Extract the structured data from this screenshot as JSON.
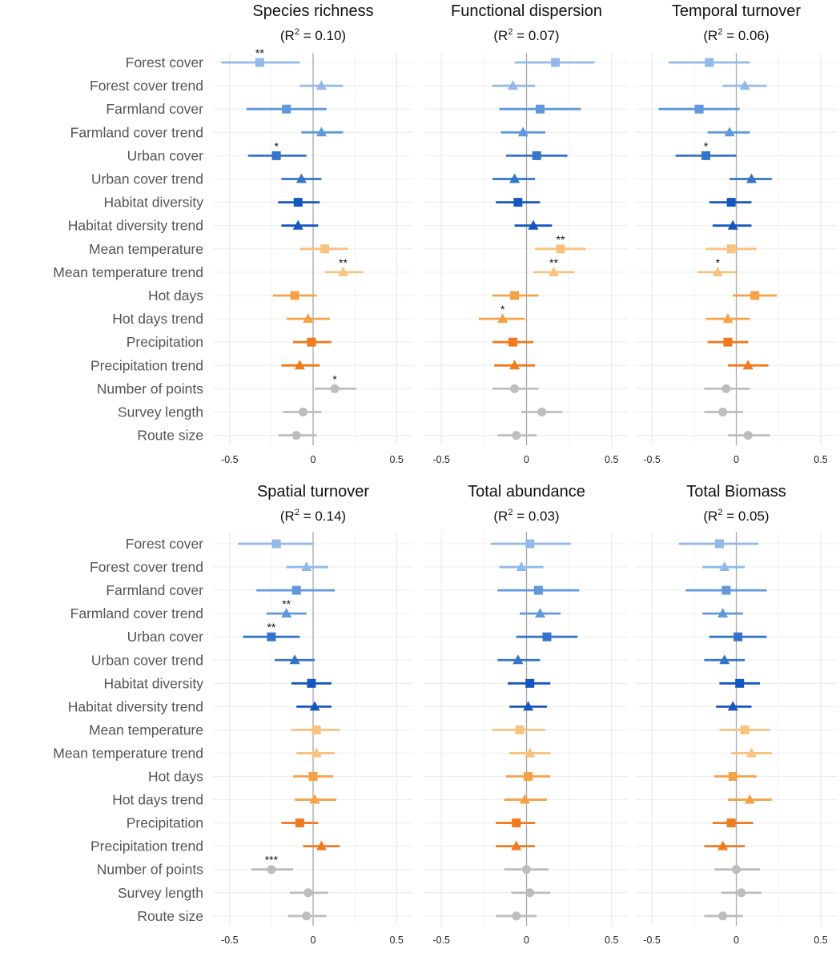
{
  "chart_data": {
    "type": "forest-plot",
    "variables": [
      {
        "label": "Forest cover",
        "color": "#93b9ea",
        "marker": "square"
      },
      {
        "label": "Forest cover trend",
        "color": "#93b9ea",
        "marker": "triangle"
      },
      {
        "label": "Farmland cover",
        "color": "#5f98db",
        "marker": "square"
      },
      {
        "label": "Farmland cover trend",
        "color": "#5f98db",
        "marker": "triangle"
      },
      {
        "label": "Urban cover",
        "color": "#3474c9",
        "marker": "square"
      },
      {
        "label": "Urban cover trend",
        "color": "#3474c9",
        "marker": "triangle"
      },
      {
        "label": "Habitat diversity",
        "color": "#1557be",
        "marker": "square"
      },
      {
        "label": "Habitat diversity trend",
        "color": "#1557be",
        "marker": "triangle"
      },
      {
        "label": "Mean temperature",
        "color": "#fac17e",
        "marker": "square"
      },
      {
        "label": "Mean temperature trend",
        "color": "#fac17e",
        "marker": "triangle"
      },
      {
        "label": "Hot days",
        "color": "#f7a147",
        "marker": "square"
      },
      {
        "label": "Hot days trend",
        "color": "#f7a147",
        "marker": "triangle"
      },
      {
        "label": "Precipitation",
        "color": "#f07a1e",
        "marker": "square"
      },
      {
        "label": "Precipitation trend",
        "color": "#f07a1e",
        "marker": "triangle"
      },
      {
        "label": "Number of points",
        "color": "#bdbdbd",
        "marker": "circle"
      },
      {
        "label": "Survey length",
        "color": "#bdbdbd",
        "marker": "circle"
      },
      {
        "label": "Route size",
        "color": "#bdbdbd",
        "marker": "circle"
      }
    ],
    "xlim": [
      -0.6,
      0.6
    ],
    "xticks": [
      -0.5,
      0,
      0.5
    ],
    "xtick_labels": [
      "-0.5",
      "0",
      "0.5"
    ],
    "panels": [
      {
        "title": "Species richness",
        "r2": "0.10",
        "estimates": [
          {
            "v": -0.32,
            "lo": -0.55,
            "hi": -0.08,
            "sig": "**"
          },
          {
            "v": 0.05,
            "lo": -0.08,
            "hi": 0.18,
            "sig": ""
          },
          {
            "v": -0.16,
            "lo": -0.4,
            "hi": 0.08,
            "sig": ""
          },
          {
            "v": 0.05,
            "lo": -0.07,
            "hi": 0.18,
            "sig": ""
          },
          {
            "v": -0.22,
            "lo": -0.39,
            "hi": -0.04,
            "sig": "*"
          },
          {
            "v": -0.07,
            "lo": -0.19,
            "hi": 0.05,
            "sig": ""
          },
          {
            "v": -0.09,
            "lo": -0.21,
            "hi": 0.04,
            "sig": ""
          },
          {
            "v": -0.09,
            "lo": -0.19,
            "hi": 0.03,
            "sig": ""
          },
          {
            "v": 0.07,
            "lo": -0.08,
            "hi": 0.21,
            "sig": ""
          },
          {
            "v": 0.18,
            "lo": 0.07,
            "hi": 0.3,
            "sig": "**"
          },
          {
            "v": -0.11,
            "lo": -0.24,
            "hi": 0.02,
            "sig": ""
          },
          {
            "v": -0.03,
            "lo": -0.16,
            "hi": 0.1,
            "sig": ""
          },
          {
            "v": -0.01,
            "lo": -0.12,
            "hi": 0.11,
            "sig": ""
          },
          {
            "v": -0.08,
            "lo": -0.19,
            "hi": 0.04,
            "sig": ""
          },
          {
            "v": 0.13,
            "lo": 0.01,
            "hi": 0.26,
            "sig": "*"
          },
          {
            "v": -0.06,
            "lo": -0.18,
            "hi": 0.05,
            "sig": ""
          },
          {
            "v": -0.1,
            "lo": -0.21,
            "hi": 0.02,
            "sig": ""
          }
        ]
      },
      {
        "title": "Functional dispersion",
        "r2": "0.07",
        "estimates": [
          {
            "v": 0.17,
            "lo": -0.07,
            "hi": 0.4,
            "sig": ""
          },
          {
            "v": -0.08,
            "lo": -0.2,
            "hi": 0.05,
            "sig": ""
          },
          {
            "v": 0.08,
            "lo": -0.16,
            "hi": 0.32,
            "sig": ""
          },
          {
            "v": -0.02,
            "lo": -0.15,
            "hi": 0.11,
            "sig": ""
          },
          {
            "v": 0.06,
            "lo": -0.12,
            "hi": 0.24,
            "sig": ""
          },
          {
            "v": -0.07,
            "lo": -0.2,
            "hi": 0.05,
            "sig": ""
          },
          {
            "v": -0.05,
            "lo": -0.18,
            "hi": 0.08,
            "sig": ""
          },
          {
            "v": 0.04,
            "lo": -0.07,
            "hi": 0.15,
            "sig": ""
          },
          {
            "v": 0.2,
            "lo": 0.05,
            "hi": 0.35,
            "sig": "**"
          },
          {
            "v": 0.16,
            "lo": 0.04,
            "hi": 0.28,
            "sig": "**"
          },
          {
            "v": -0.07,
            "lo": -0.2,
            "hi": 0.07,
            "sig": ""
          },
          {
            "v": -0.14,
            "lo": -0.28,
            "hi": -0.01,
            "sig": "*"
          },
          {
            "v": -0.08,
            "lo": -0.2,
            "hi": 0.04,
            "sig": ""
          },
          {
            "v": -0.07,
            "lo": -0.19,
            "hi": 0.05,
            "sig": ""
          },
          {
            "v": -0.07,
            "lo": -0.2,
            "hi": 0.07,
            "sig": ""
          },
          {
            "v": 0.09,
            "lo": -0.03,
            "hi": 0.21,
            "sig": ""
          },
          {
            "v": -0.06,
            "lo": -0.17,
            "hi": 0.06,
            "sig": ""
          }
        ]
      },
      {
        "title": "Temporal turnover",
        "r2": "0.06",
        "estimates": [
          {
            "v": -0.16,
            "lo": -0.4,
            "hi": 0.08,
            "sig": ""
          },
          {
            "v": 0.05,
            "lo": -0.08,
            "hi": 0.18,
            "sig": ""
          },
          {
            "v": -0.22,
            "lo": -0.46,
            "hi": 0.02,
            "sig": ""
          },
          {
            "v": -0.04,
            "lo": -0.17,
            "hi": 0.08,
            "sig": ""
          },
          {
            "v": -0.18,
            "lo": -0.36,
            "hi": 0.0,
            "sig": "*"
          },
          {
            "v": 0.09,
            "lo": -0.04,
            "hi": 0.21,
            "sig": ""
          },
          {
            "v": -0.03,
            "lo": -0.16,
            "hi": 0.09,
            "sig": ""
          },
          {
            "v": -0.02,
            "lo": -0.14,
            "hi": 0.09,
            "sig": ""
          },
          {
            "v": -0.03,
            "lo": -0.18,
            "hi": 0.12,
            "sig": ""
          },
          {
            "v": -0.11,
            "lo": -0.23,
            "hi": 0.01,
            "sig": "*"
          },
          {
            "v": 0.11,
            "lo": -0.02,
            "hi": 0.24,
            "sig": ""
          },
          {
            "v": -0.05,
            "lo": -0.18,
            "hi": 0.08,
            "sig": ""
          },
          {
            "v": -0.05,
            "lo": -0.17,
            "hi": 0.07,
            "sig": ""
          },
          {
            "v": 0.07,
            "lo": -0.05,
            "hi": 0.19,
            "sig": ""
          },
          {
            "v": -0.06,
            "lo": -0.19,
            "hi": 0.08,
            "sig": ""
          },
          {
            "v": -0.08,
            "lo": -0.19,
            "hi": 0.04,
            "sig": ""
          },
          {
            "v": 0.07,
            "lo": -0.05,
            "hi": 0.2,
            "sig": ""
          }
        ]
      },
      {
        "title": "Spatial turnover",
        "r2": "0.14",
        "estimates": [
          {
            "v": -0.22,
            "lo": -0.45,
            "hi": 0.0,
            "sig": ""
          },
          {
            "v": -0.04,
            "lo": -0.16,
            "hi": 0.09,
            "sig": ""
          },
          {
            "v": -0.1,
            "lo": -0.34,
            "hi": 0.13,
            "sig": ""
          },
          {
            "v": -0.16,
            "lo": -0.28,
            "hi": -0.04,
            "sig": "**"
          },
          {
            "v": -0.25,
            "lo": -0.42,
            "hi": -0.08,
            "sig": "**"
          },
          {
            "v": -0.11,
            "lo": -0.23,
            "hi": 0.01,
            "sig": ""
          },
          {
            "v": -0.01,
            "lo": -0.13,
            "hi": 0.11,
            "sig": ""
          },
          {
            "v": 0.01,
            "lo": -0.1,
            "hi": 0.11,
            "sig": ""
          },
          {
            "v": 0.02,
            "lo": -0.13,
            "hi": 0.16,
            "sig": ""
          },
          {
            "v": 0.02,
            "lo": -0.1,
            "hi": 0.13,
            "sig": ""
          },
          {
            "v": 0.0,
            "lo": -0.12,
            "hi": 0.12,
            "sig": ""
          },
          {
            "v": 0.01,
            "lo": -0.11,
            "hi": 0.14,
            "sig": ""
          },
          {
            "v": -0.08,
            "lo": -0.19,
            "hi": 0.03,
            "sig": ""
          },
          {
            "v": 0.05,
            "lo": -0.06,
            "hi": 0.16,
            "sig": ""
          },
          {
            "v": -0.25,
            "lo": -0.37,
            "hi": -0.12,
            "sig": "***"
          },
          {
            "v": -0.03,
            "lo": -0.14,
            "hi": 0.09,
            "sig": ""
          },
          {
            "v": -0.04,
            "lo": -0.15,
            "hi": 0.08,
            "sig": ""
          }
        ]
      },
      {
        "title": "Total abundance",
        "r2": "0.03",
        "estimates": [
          {
            "v": 0.02,
            "lo": -0.21,
            "hi": 0.26,
            "sig": ""
          },
          {
            "v": -0.03,
            "lo": -0.16,
            "hi": 0.1,
            "sig": ""
          },
          {
            "v": 0.07,
            "lo": -0.17,
            "hi": 0.31,
            "sig": ""
          },
          {
            "v": 0.08,
            "lo": -0.04,
            "hi": 0.2,
            "sig": ""
          },
          {
            "v": 0.12,
            "lo": -0.06,
            "hi": 0.3,
            "sig": ""
          },
          {
            "v": -0.05,
            "lo": -0.17,
            "hi": 0.08,
            "sig": ""
          },
          {
            "v": 0.02,
            "lo": -0.11,
            "hi": 0.14,
            "sig": ""
          },
          {
            "v": 0.01,
            "lo": -0.1,
            "hi": 0.12,
            "sig": ""
          },
          {
            "v": -0.04,
            "lo": -0.2,
            "hi": 0.11,
            "sig": ""
          },
          {
            "v": 0.02,
            "lo": -0.1,
            "hi": 0.14,
            "sig": ""
          },
          {
            "v": 0.01,
            "lo": -0.12,
            "hi": 0.14,
            "sig": ""
          },
          {
            "v": -0.01,
            "lo": -0.13,
            "hi": 0.12,
            "sig": ""
          },
          {
            "v": -0.06,
            "lo": -0.18,
            "hi": 0.05,
            "sig": ""
          },
          {
            "v": -0.06,
            "lo": -0.18,
            "hi": 0.05,
            "sig": ""
          },
          {
            "v": 0.0,
            "lo": -0.13,
            "hi": 0.13,
            "sig": ""
          },
          {
            "v": 0.02,
            "lo": -0.09,
            "hi": 0.14,
            "sig": ""
          },
          {
            "v": -0.06,
            "lo": -0.18,
            "hi": 0.06,
            "sig": ""
          }
        ]
      },
      {
        "title": "Total Biomass",
        "r2": "0.05",
        "estimates": [
          {
            "v": -0.1,
            "lo": -0.34,
            "hi": 0.13,
            "sig": ""
          },
          {
            "v": -0.07,
            "lo": -0.2,
            "hi": 0.05,
            "sig": ""
          },
          {
            "v": -0.06,
            "lo": -0.3,
            "hi": 0.18,
            "sig": ""
          },
          {
            "v": -0.08,
            "lo": -0.2,
            "hi": 0.04,
            "sig": ""
          },
          {
            "v": 0.01,
            "lo": -0.16,
            "hi": 0.18,
            "sig": ""
          },
          {
            "v": -0.07,
            "lo": -0.19,
            "hi": 0.05,
            "sig": ""
          },
          {
            "v": 0.02,
            "lo": -0.1,
            "hi": 0.14,
            "sig": ""
          },
          {
            "v": -0.02,
            "lo": -0.12,
            "hi": 0.09,
            "sig": ""
          },
          {
            "v": 0.05,
            "lo": -0.1,
            "hi": 0.2,
            "sig": ""
          },
          {
            "v": 0.09,
            "lo": -0.03,
            "hi": 0.21,
            "sig": ""
          },
          {
            "v": -0.02,
            "lo": -0.13,
            "hi": 0.12,
            "sig": ""
          },
          {
            "v": 0.08,
            "lo": -0.05,
            "hi": 0.21,
            "sig": ""
          },
          {
            "v": -0.03,
            "lo": -0.14,
            "hi": 0.1,
            "sig": ""
          },
          {
            "v": -0.08,
            "lo": -0.19,
            "hi": 0.05,
            "sig": ""
          },
          {
            "v": 0.0,
            "lo": -0.13,
            "hi": 0.14,
            "sig": ""
          },
          {
            "v": 0.03,
            "lo": -0.09,
            "hi": 0.15,
            "sig": ""
          },
          {
            "v": -0.08,
            "lo": -0.19,
            "hi": 0.04,
            "sig": ""
          }
        ]
      }
    ]
  }
}
